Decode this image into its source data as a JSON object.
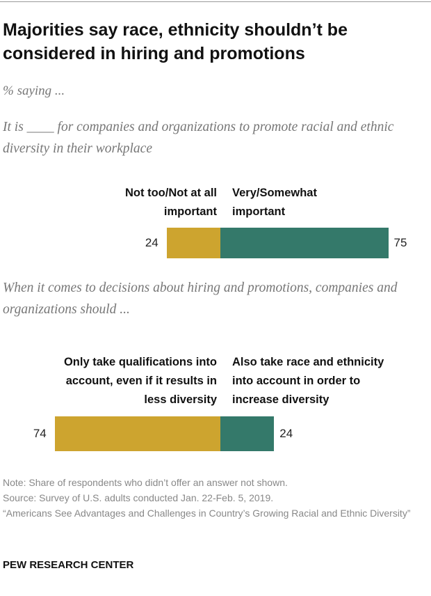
{
  "header": {
    "title": "Majorities say race, ethnicity shouldn’t be considered in hiring and promotions",
    "subtitle": "% saying ..."
  },
  "chart_data": [
    {
      "type": "bar",
      "title": "It is ____ for companies and organizations to promote racial and ethnic diversity in their workplace",
      "series": [
        {
          "name": "Not too/Not at all important",
          "color": "#cda42f",
          "values": [
            24
          ]
        },
        {
          "name": "Very/Somewhat important",
          "color": "#34796a",
          "values": [
            75
          ]
        }
      ]
    },
    {
      "type": "bar",
      "title": "When it comes to decisions about hiring and promotions, companies and organizations should ...",
      "series": [
        {
          "name": "Only take qualifications into account, even if it results in less diversity",
          "color": "#cda42f",
          "values": [
            74
          ]
        },
        {
          "name": "Also take race and ethnicity into account in order to increase diversity",
          "color": "#34796a",
          "values": [
            24
          ]
        }
      ]
    }
  ],
  "footer": {
    "note": "Note: Share of respondents who didn’t offer an answer not shown.",
    "source": "Source: Survey of U.S. adults conducted Jan. 22-Feb. 5, 2019.",
    "report": "“Americans See Advantages and Challenges in Country’s Growing Racial and Ethnic Diversity”",
    "brand": "PEW RESEARCH CENTER"
  }
}
